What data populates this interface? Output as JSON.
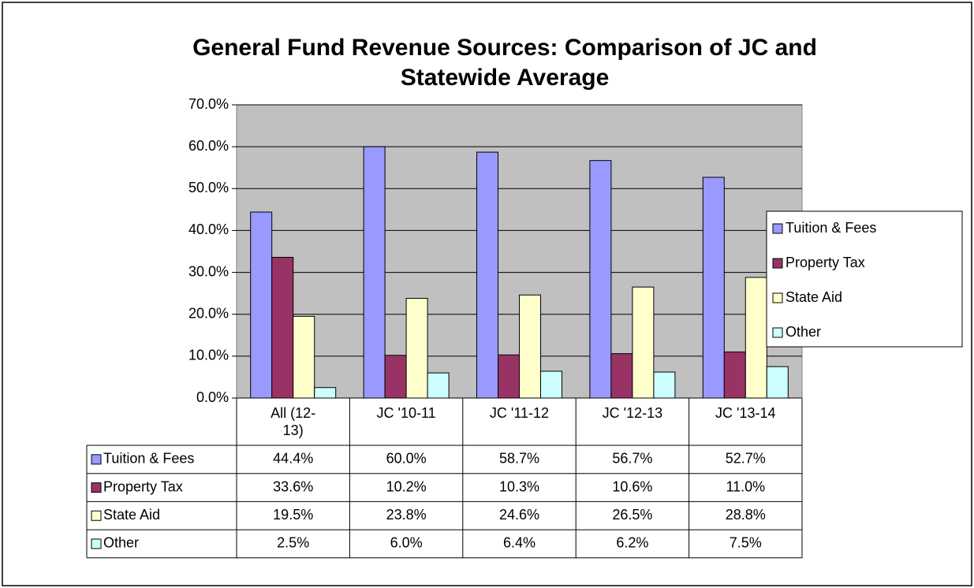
{
  "chart_data": {
    "type": "bar",
    "title": "General Fund Revenue Sources: Comparison of JC and Statewide Average",
    "categories": [
      "All (12-13)",
      "JC '10-11",
      "JC '11-12",
      "JC '12-13",
      "JC '13-14"
    ],
    "series": [
      {
        "name": "Tuition & Fees",
        "color": "#9999ff",
        "values": [
          44.4,
          60.0,
          58.7,
          56.7,
          52.7
        ],
        "value_labels": [
          "44.4%",
          "60.0%",
          "58.7%",
          "56.7%",
          "52.7%"
        ]
      },
      {
        "name": "Property Tax",
        "color": "#993366",
        "values": [
          33.6,
          10.2,
          10.3,
          10.6,
          11.0
        ],
        "value_labels": [
          "33.6%",
          "10.2%",
          "10.3%",
          "10.6%",
          "11.0%"
        ]
      },
      {
        "name": "State Aid",
        "color": "#ffffcc",
        "values": [
          19.5,
          23.8,
          24.6,
          26.5,
          28.8
        ],
        "value_labels": [
          "19.5%",
          "23.8%",
          "24.6%",
          "26.5%",
          "28.8%"
        ]
      },
      {
        "name": "Other",
        "color": "#ccffff",
        "values": [
          2.5,
          6.0,
          6.4,
          6.2,
          7.5
        ],
        "value_labels": [
          "2.5%",
          "6.0%",
          "6.4%",
          "6.2%",
          "7.5%"
        ]
      }
    ],
    "ylim": [
      0,
      70
    ],
    "yticks": [
      {
        "value": 0,
        "label": "0.0%"
      },
      {
        "value": 10,
        "label": "10.0%"
      },
      {
        "value": 20,
        "label": "20.0%"
      },
      {
        "value": 30,
        "label": "30.0%"
      },
      {
        "value": 40,
        "label": "40.0%"
      },
      {
        "value": 50,
        "label": "50.0%"
      },
      {
        "value": 60,
        "label": "60.0%"
      },
      {
        "value": 70,
        "label": "70.0%"
      }
    ],
    "grid": true,
    "legend": "right",
    "plot_background": "#c0c0c0"
  }
}
